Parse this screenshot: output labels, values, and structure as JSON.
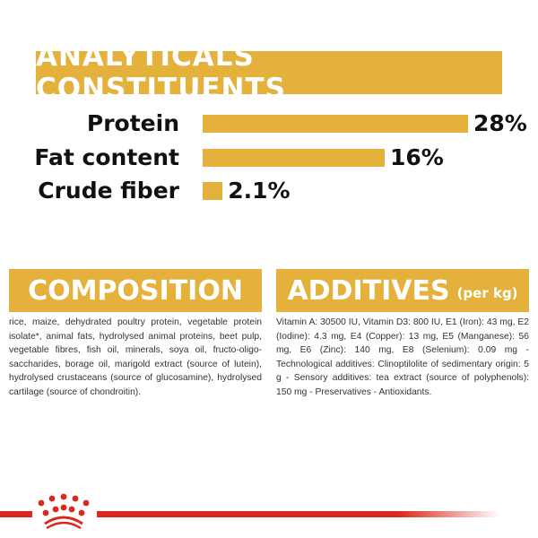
{
  "chart_data": {
    "type": "bar",
    "title": "ANALYTICALS CONSTITUENTS",
    "categories": [
      "Protein",
      "Fat content",
      "Crude fiber"
    ],
    "values": [
      28,
      16,
      2.1
    ],
    "value_labels": [
      "28%",
      "16%",
      "2.1%"
    ],
    "orientation": "horizontal",
    "bar_color": "#e3b13c",
    "grid": false
  },
  "composition": {
    "title": "COMPOSITION",
    "text": "rice, maize, dehydrated poultry protein, vegetable protein isolate*, animal fats, hydrolysed animal proteins, beet pulp, vegetable fibres, fish oil, minerals, soya oil, fructo-oligo-saccharides, borage oil, marigold extract (source of lutein), hydrolysed crustaceans (source of glucosamine), hydrolysed cartilage (source of chondroitin)."
  },
  "additives": {
    "title": "ADDITIVES",
    "subtitle": "(per kg)",
    "text": "Vitamin A: 30500 IU, Vitamin D3: 800 IU, E1 (Iron): 43 mg, E2 (Iodine): 4.3 mg, E4 (Copper): 13 mg, E5 (Manganese): 56 mg, E6 (Zinc): 140 mg, E8 (Selenium): 0.09 mg - Technological additives: Clinoptilolite of sedimentary origin: 5 g - Sensory additives: tea extract (source of polyphenols): 150 mg - Preservatives - Antioxidants."
  },
  "brand": {
    "logo": "royal-canin-crown",
    "color": "#da291c"
  }
}
